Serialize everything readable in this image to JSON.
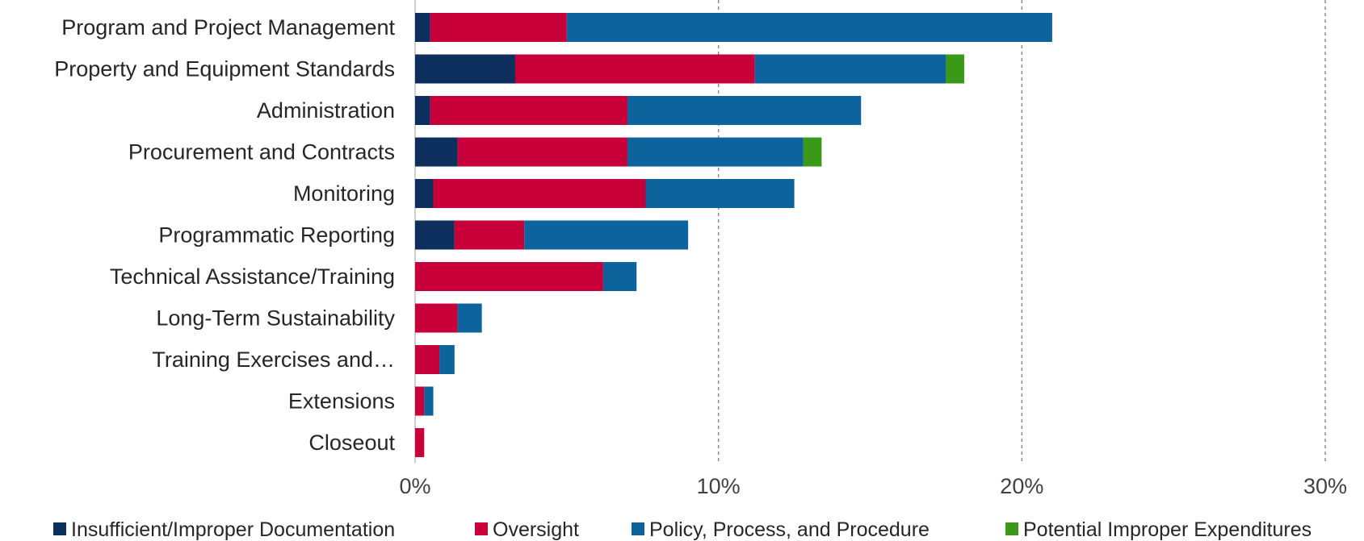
{
  "chart_data": {
    "type": "bar",
    "orientation": "horizontal",
    "stacked": true,
    "categories": [
      "Program and Project Management",
      "Property and Equipment Standards",
      "Administration",
      "Procurement and Contracts",
      "Monitoring",
      "Programmatic Reporting",
      "Technical Assistance/Training",
      "Long-Term Sustainability",
      "Training Exercises and…",
      "Extensions",
      "Closeout"
    ],
    "series": [
      {
        "name": "Insufficient/Improper Documentation",
        "color": "#0c2f5e",
        "values": [
          0.5,
          3.3,
          0.5,
          1.4,
          0.6,
          1.3,
          0,
          0,
          0,
          0,
          0
        ]
      },
      {
        "name": "Oversight",
        "color": "#c8003a",
        "values": [
          4.5,
          7.9,
          6.5,
          5.6,
          7.0,
          2.3,
          6.2,
          1.4,
          0.8,
          0.3,
          0.3
        ]
      },
      {
        "name": "Policy, Process, and Procedure",
        "color": "#0d639b",
        "values": [
          16.0,
          6.3,
          7.7,
          5.8,
          4.9,
          5.4,
          1.1,
          0.8,
          0.5,
          0.3,
          0
        ]
      },
      {
        "name": "Potential Improper Expenditures",
        "color": "#3a9a17",
        "values": [
          0,
          0.6,
          0,
          0.6,
          0,
          0,
          0,
          0,
          0,
          0,
          0
        ]
      }
    ],
    "xlim": [
      0,
      30
    ],
    "xticks": [
      0,
      10,
      20,
      30
    ],
    "xtick_labels": [
      "0%",
      "10%",
      "20%",
      "30%"
    ],
    "xlabel": "",
    "ylabel": "",
    "grid": "vertical-dashed",
    "legend_position": "bottom"
  }
}
